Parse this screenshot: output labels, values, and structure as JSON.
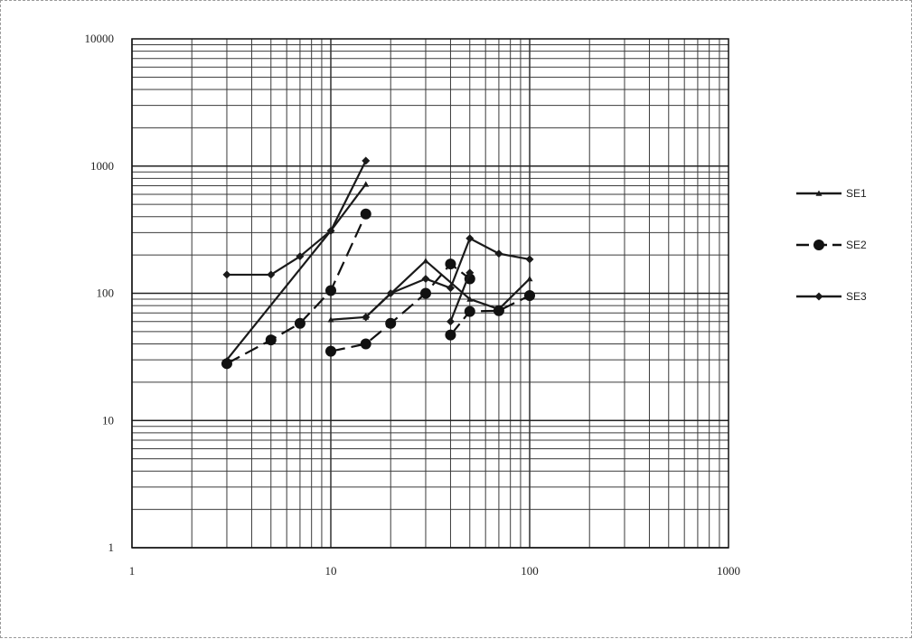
{
  "chart_data": {
    "type": "line",
    "title": "",
    "xlabel": "",
    "ylabel": "",
    "x_scale": "log",
    "y_scale": "log",
    "xlim": [
      1,
      1000
    ],
    "ylim": [
      1,
      10000
    ],
    "grid": true,
    "legend_position": "right",
    "x_tick_labels": [
      "1",
      "10",
      "100",
      "1000"
    ],
    "y_tick_labels": [
      "1",
      "10",
      "100",
      "1000",
      "10000"
    ],
    "series": [
      {
        "name": "SE1",
        "marker": "triangle",
        "dash": "solid",
        "color": "#1a1a1a",
        "segments": [
          {
            "x": [
              3,
              10,
              15
            ],
            "y": [
              30,
              310,
              720
            ]
          },
          {
            "x": [
              10,
              15,
              30,
              50,
              70,
              100
            ],
            "y": [
              62,
              65,
              180,
              90,
              75,
              130
            ]
          }
        ]
      },
      {
        "name": "SE2",
        "marker": "circle",
        "dash": "dashed",
        "color": "#111111",
        "segments": [
          {
            "x": [
              3,
              5,
              7,
              10,
              15
            ],
            "y": [
              28,
              43,
              58,
              105,
              420
            ]
          },
          {
            "x": [
              10,
              15,
              20,
              30,
              40,
              50
            ],
            "y": [
              35,
              40,
              58,
              100,
              170,
              130
            ]
          },
          {
            "x": [
              40,
              50,
              70,
              100
            ],
            "y": [
              47,
              72,
              73,
              96
            ]
          }
        ]
      },
      {
        "name": "SE3",
        "marker": "diamond",
        "dash": "solid",
        "color": "#1a1a1a",
        "segments": [
          {
            "x": [
              3,
              5,
              7,
              10,
              15
            ],
            "y": [
              140,
              140,
              195,
              310,
              1100
            ]
          },
          {
            "x": [
              15,
              20,
              30,
              40,
              50,
              70,
              100
            ],
            "y": [
              65,
              100,
              130,
              110,
              270,
              205,
              185
            ]
          },
          {
            "x": [
              40,
              50
            ],
            "y": [
              60,
              145
            ]
          }
        ]
      }
    ]
  }
}
